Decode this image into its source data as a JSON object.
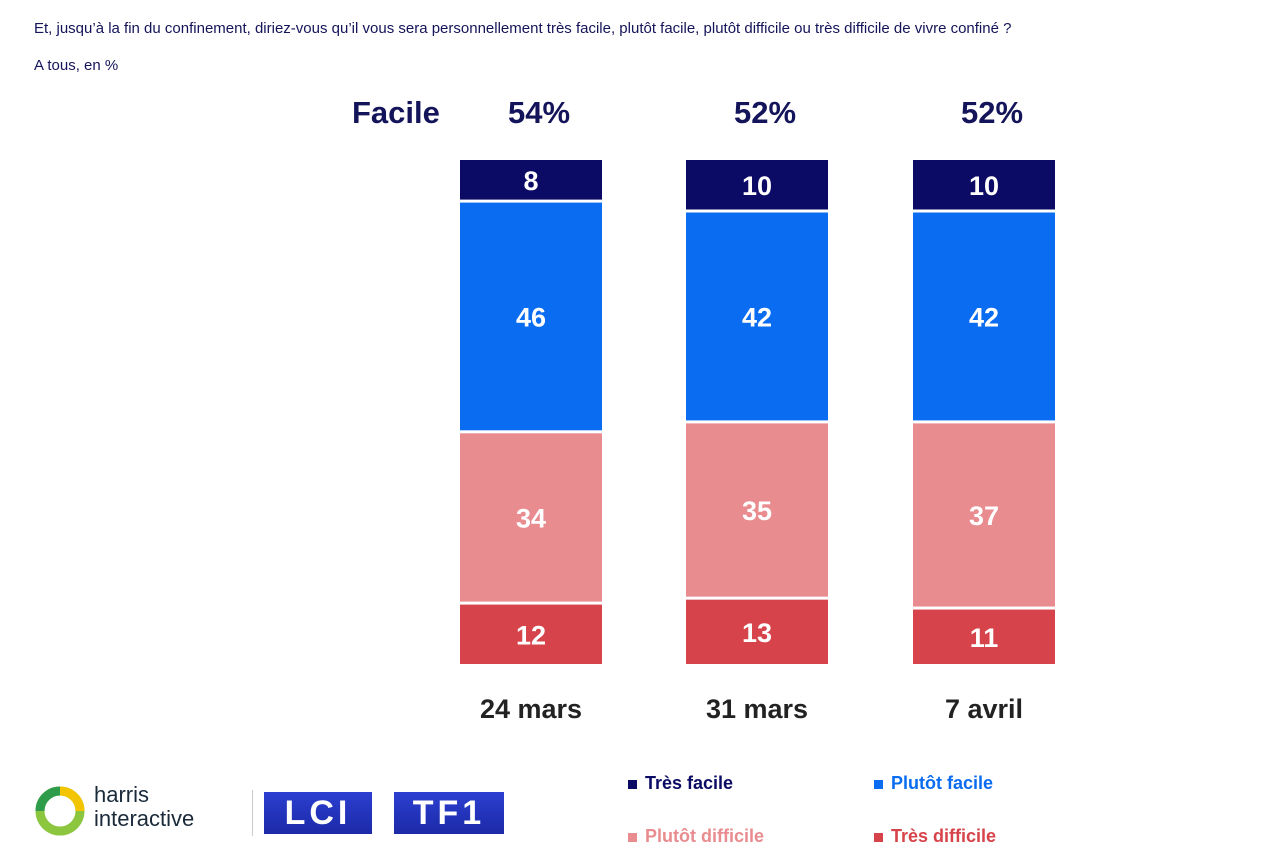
{
  "question": "Et, jusqu’à la fin du confinement, diriez-vous qu’il vous sera personnellement très facile, plutôt facile, plutôt difficile ou très difficile de vivre confiné ?",
  "base": "A tous, en %",
  "facile_label": "Facile",
  "colors": {
    "tres_facile": "#0b0b66",
    "plutot_facile": "#0a6cf0",
    "plutot_difficile": "#e88c90",
    "tres_difficile": "#d7434a",
    "text_dark": "#14145a"
  },
  "legend": {
    "tres_facile": "Très facile",
    "plutot_facile": "Plutôt facile",
    "plutot_difficile": "Plutôt difficile",
    "tres_difficile": "Très difficile"
  },
  "logos": {
    "harris_line1": "harris",
    "harris_line2": "interactive",
    "lci": "LCI",
    "tf1": "TF1"
  },
  "chart_data": {
    "type": "bar",
    "stacked": true,
    "categories": [
      "24 mars",
      "31 mars",
      "7 avril"
    ],
    "totals_label": [
      "54%",
      "52%",
      "52%"
    ],
    "series": [
      {
        "name": "Très facile",
        "values": [
          8,
          10,
          10
        ]
      },
      {
        "name": "Plutôt facile",
        "values": [
          46,
          42,
          42
        ]
      },
      {
        "name": "Plutôt difficile",
        "values": [
          34,
          35,
          37
        ]
      },
      {
        "name": "Très difficile",
        "values": [
          12,
          13,
          11
        ]
      }
    ]
  }
}
